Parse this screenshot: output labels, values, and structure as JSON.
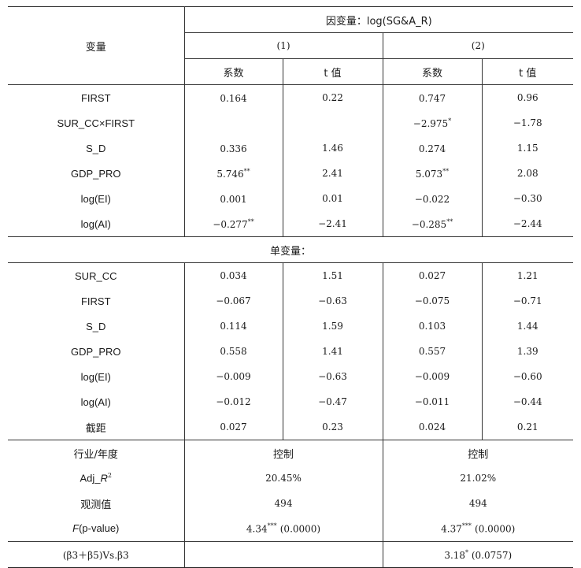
{
  "header": {
    "var_col": "变量",
    "dep_var": "因变量：log(SG&A_R)",
    "model1": "(1)",
    "model2": "(2)",
    "coef": "系数",
    "tval": "t 值"
  },
  "panel_a": [
    {
      "label": "FIRST",
      "c1": "0.164",
      "s1": "",
      "t1": "0.22",
      "c2": "0.747",
      "s2": "",
      "t2": "0.96"
    },
    {
      "label": "SUR_CC×FIRST",
      "c1": "",
      "s1": "",
      "t1": "",
      "c2": "−2.975",
      "s2": "*",
      "t2": "−1.78"
    },
    {
      "label": "S_D",
      "c1": "0.336",
      "s1": "",
      "t1": "1.46",
      "c2": "0.274",
      "s2": "",
      "t2": "1.15"
    },
    {
      "label": "GDP_PRO",
      "c1": "5.746",
      "s1": "**",
      "t1": "2.41",
      "c2": "5.073",
      "s2": "**",
      "t2": "2.08"
    },
    {
      "label": "log(EI)",
      "c1": "0.001",
      "s1": "",
      "t1": "0.01",
      "c2": "−0.022",
      "s2": "",
      "t2": "−0.30"
    },
    {
      "label": "log(AI)",
      "c1": "−0.277",
      "s1": "**",
      "t1": "−2.41",
      "c2": "−0.285",
      "s2": "**",
      "t2": "−2.44"
    }
  ],
  "section_b": "单变量：",
  "panel_b": [
    {
      "label": "SUR_CC",
      "c1": "0.034",
      "t1": "1.51",
      "c2": "0.027",
      "t2": "1.21"
    },
    {
      "label": "FIRST",
      "c1": "−0.067",
      "t1": "−0.63",
      "c2": "−0.075",
      "t2": "−0.71"
    },
    {
      "label": "S_D",
      "c1": "0.114",
      "t1": "1.59",
      "c2": "0.103",
      "t2": "1.44"
    },
    {
      "label": "GDP_PRO",
      "c1": "0.558",
      "t1": "1.41",
      "c2": "0.557",
      "t2": "1.39"
    },
    {
      "label": "log(EI)",
      "c1": "−0.009",
      "t1": "−0.63",
      "c2": "−0.009",
      "t2": "−0.60"
    },
    {
      "label": "log(AI)",
      "c1": "−0.012",
      "t1": "−0.47",
      "c2": "−0.011",
      "t2": "−0.44"
    },
    {
      "label": "截距",
      "c1": "0.027",
      "t1": "0.23",
      "c2": "0.024",
      "t2": "0.21"
    }
  ],
  "stats": {
    "industry_year": {
      "label": "行业/年度",
      "m1": "控制",
      "m2": "控制"
    },
    "adj_r2": {
      "label_prefix": "Adj_",
      "label_var": "R",
      "label_sup": "2",
      "m1": "20.45%",
      "m2": "21.02%"
    },
    "obs": {
      "label": "观测值",
      "m1": "494",
      "m2": "494"
    },
    "f": {
      "label_var": "F",
      "label_rest": "(p-value)",
      "m1_val": "4.34",
      "m1_star": "***",
      "m1_p": "(0.0000)",
      "m2_val": "4.37",
      "m2_star": "***",
      "m2_p": "(0.0000)"
    }
  },
  "test_row": {
    "label": "(β3＋β5)Vs.β3",
    "m1": "",
    "m2_val": "3.18",
    "m2_star": "*",
    "m2_p": "(0.0757)"
  }
}
